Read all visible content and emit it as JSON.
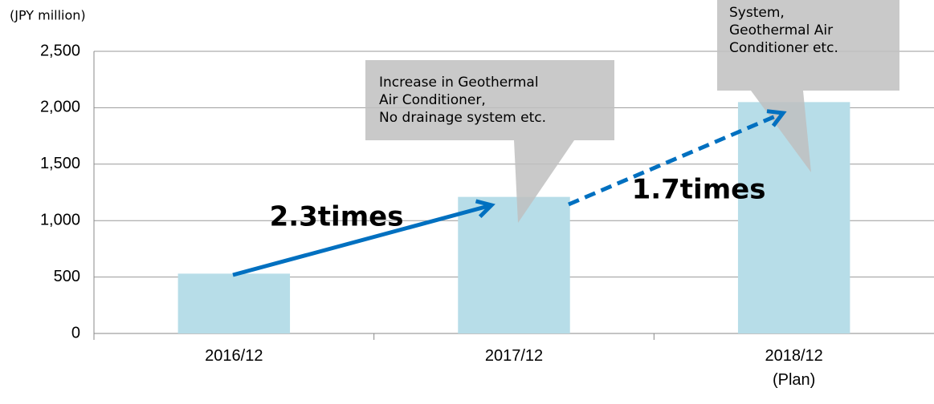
{
  "chart_data": {
    "type": "bar",
    "unit_label": "(JPY million)",
    "categories": [
      "2016/12",
      "2017/12",
      "2018/12\n(Plan)"
    ],
    "values": [
      530,
      1210,
      2050
    ],
    "color": "#b7dde8",
    "ylim": [
      0,
      2500
    ],
    "yticks": [
      0,
      500,
      {
        "value": 1000,
        "label": "1,000"
      },
      {
        "value": 1500,
        "label": "1,500"
      },
      {
        "value": 2000,
        "label": "2,000"
      },
      {
        "value": 2500,
        "label": "2,500"
      }
    ],
    "grid": true,
    "annotations": [
      "Increase in Geothermal\nAir Conditioner,\nNo drainage system etc.",
      "Power Generation\nSystem,\nGeothermal Air\nConditioner etc.",
      "2.3times",
      "1.7times"
    ]
  }
}
